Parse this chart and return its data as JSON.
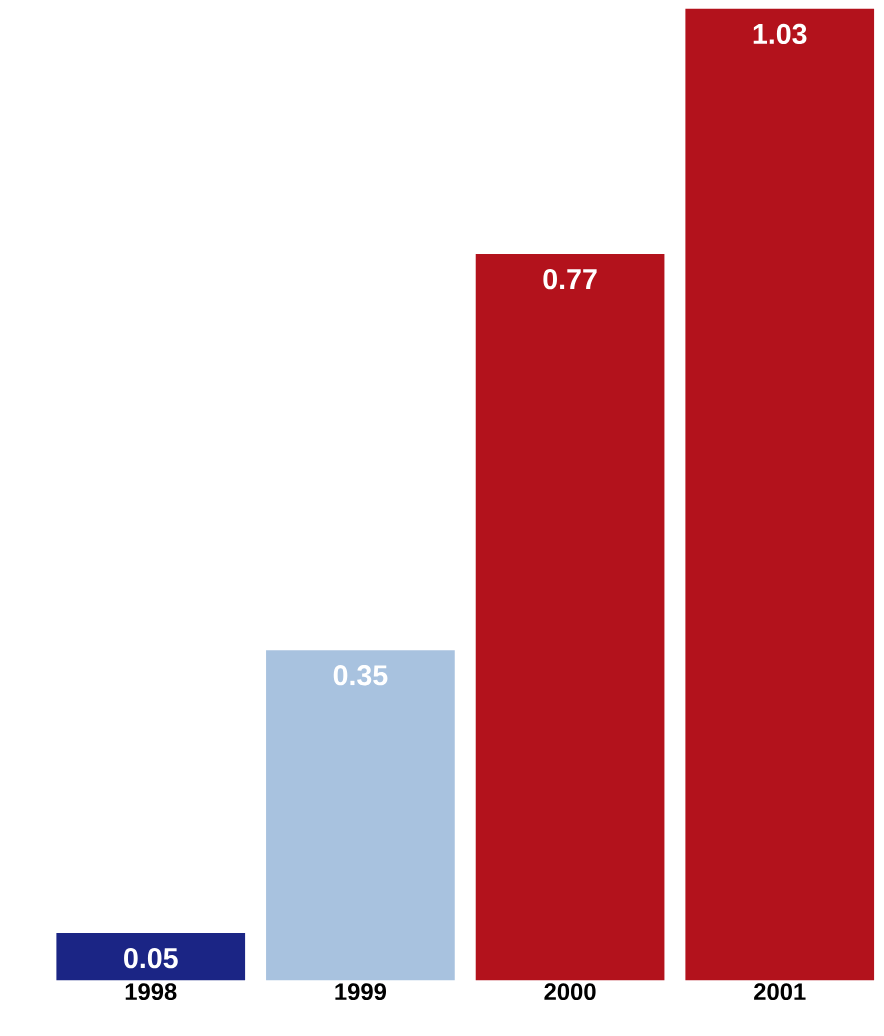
{
  "chart_data": {
    "type": "bar",
    "categories": [
      "1998",
      "1999",
      "2000",
      "2001"
    ],
    "values": [
      0.05,
      0.35,
      0.77,
      1.03
    ],
    "colors": [
      "#1b2585",
      "#a8c2df",
      "#b3121c",
      "#b3121c"
    ],
    "data_labels": true
  }
}
